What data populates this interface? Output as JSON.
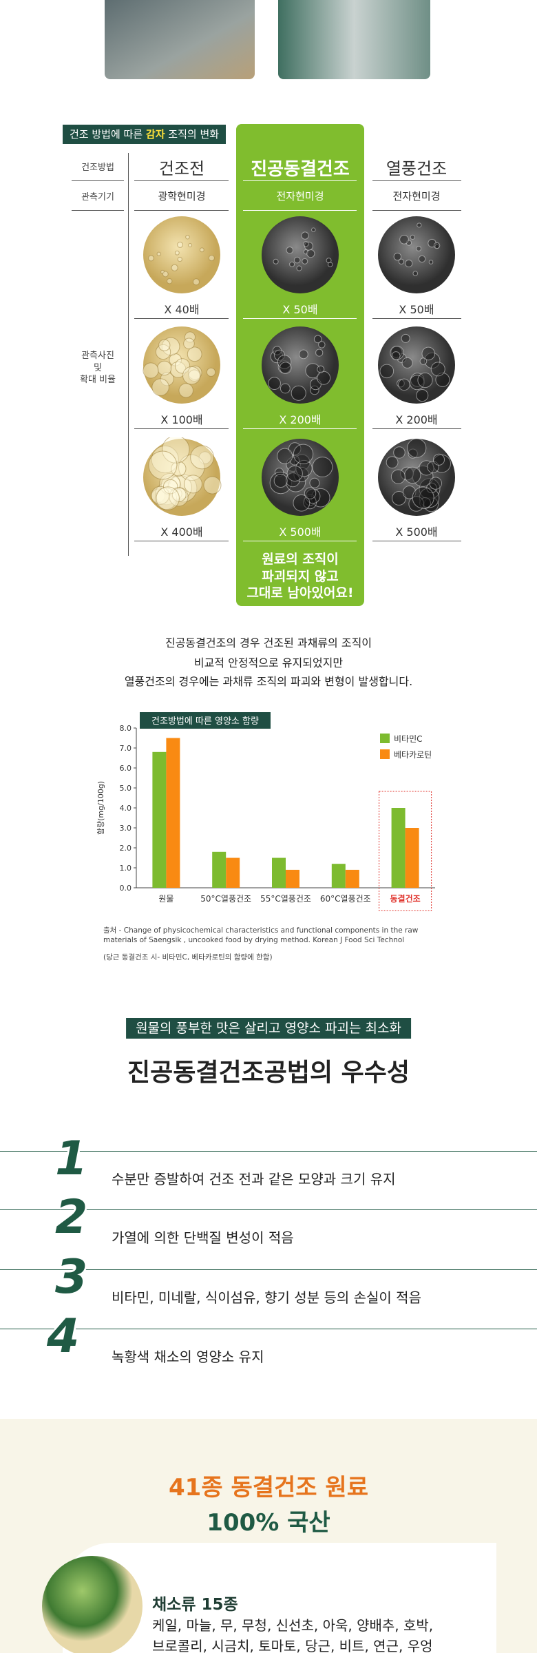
{
  "comparison": {
    "tag": {
      "before": "건조 방법에 따른 ",
      "highlight": "감자",
      "after": " 조직의 변화"
    },
    "row_labels": [
      "건조방법",
      "관측기기",
      "관측사진\n및\n확대 비율"
    ],
    "columns": [
      {
        "name": "건조전",
        "instrument": "광학현미경",
        "magnifications": [
          "X 40배",
          "X 100배",
          "X 400배"
        ]
      },
      {
        "name": "진공동결건조",
        "instrument": "전자현미경",
        "magnifications": [
          "X 50배",
          "X 200배",
          "X 500배"
        ]
      },
      {
        "name": "열풍건조",
        "instrument": "전자현미경",
        "magnifications": [
          "X 50배",
          "X 200배",
          "X 500배"
        ]
      }
    ],
    "note": "원료의 조직이\n파괴되지 않고\n그대로 남아있어요!"
  },
  "summary": [
    "진공동결건조의 경우 건조된 과채류의 조직이",
    "비교적 안정적으로 유지되었지만",
    "열풍건조의 경우에는 과채류 조직의 파괴와 변형이 발생합니다."
  ],
  "chart_data": {
    "type": "bar",
    "title": "건조방법에 따른 영양소 함량",
    "y_label": "함량(mg/100g)",
    "categories": [
      "원물",
      "50°C열풍건조",
      "55°C열풍건조",
      "60°C열풍건조",
      "동결건조"
    ],
    "series": [
      {
        "name": "비타민C",
        "color": "#7dbb2f",
        "values": [
          6.8,
          1.8,
          1.5,
          1.2,
          4.0
        ]
      },
      {
        "name": "베타카로틴",
        "color": "#f98a12",
        "values": [
          7.5,
          1.5,
          0.9,
          0.9,
          3.0
        ]
      }
    ],
    "ylim": [
      0,
      8
    ],
    "yticks": [
      {
        "value": 0,
        "label": "0.0"
      },
      {
        "value": 1,
        "label": "1.0"
      },
      {
        "value": 2,
        "label": "2.0"
      },
      {
        "value": 3,
        "label": "3.0"
      },
      {
        "value": 4,
        "label": "4.0"
      },
      {
        "value": 5,
        "label": "5.0"
      },
      {
        "value": 6,
        "label": "6.0"
      },
      {
        "value": 7,
        "label": "7.0"
      },
      {
        "value": 8,
        "label": "8.0"
      }
    ],
    "legend": "upper right",
    "grid": false,
    "source": "출처 - Change of physicochemical characteristics  and functional components in the raw\nmaterials of Saengsik , uncooked food by drying method. Korean J Food Sci Technol",
    "footnote": "(당근 동결건조 시- 비타민C, 베타카로틴의 함량에 한함)"
  },
  "benefits": {
    "tag": "원물의 풍부한 맛은 살리고 영양소 파괴는 최소화",
    "title": "진공동결건조공법의 우수성",
    "items": [
      {
        "number": 1,
        "text": "수분만 증발하여 건조 전과 같은 모양과 크기 유지"
      },
      {
        "number": 2,
        "text": "가열에 의한 단백질 변성이 적음"
      },
      {
        "number": 3,
        "text": "비타민, 미네랄, 식이섬유, 향기 성분 등의 손실이 적음"
      },
      {
        "number": 4,
        "text": "녹황색 채소의 영양소 유지"
      }
    ]
  },
  "ingredients": {
    "title": "41종 동결건조 원료",
    "subtitle": "100% 국산",
    "groups": [
      {
        "name": "채소류 15종",
        "items": "케일, 마늘, 무, 무청, 신선초, 아욱, 양배추, 호박,\n브로콜리, 시금치, 토마토, 당근, 비트, 연근, 우엉"
      }
    ]
  }
}
